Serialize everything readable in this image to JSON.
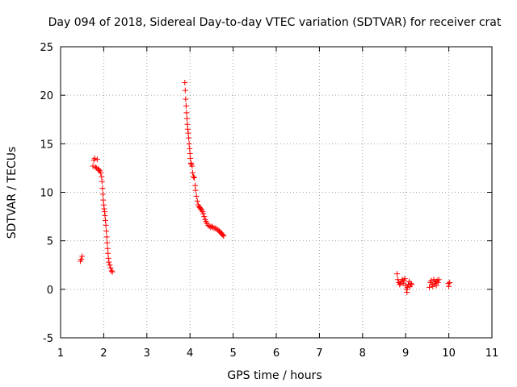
{
  "chart_data": {
    "type": "scatter",
    "title": "Day 094 of 2018, Sidereal Day-to-day VTEC variation (SDTVAR) for receiver crat",
    "xlabel": "GPS time / hours",
    "ylabel": "SDTVAR / TECUs",
    "xlim": [
      1,
      11
    ],
    "ylim": [
      -5,
      25
    ],
    "x_ticks": [
      1,
      2,
      3,
      4,
      5,
      6,
      7,
      8,
      9,
      10,
      11
    ],
    "y_ticks": [
      -5,
      0,
      5,
      10,
      15,
      20,
      25
    ],
    "x_tick_labels": [
      "1",
      "2",
      "3",
      "4",
      "5",
      "6",
      "7",
      "8",
      "9",
      "10",
      "11"
    ],
    "y_tick_labels": [
      "-5",
      "0",
      "5",
      "10",
      "15",
      "20",
      "25"
    ],
    "grid": true,
    "marker": "+",
    "color": "#ff0000",
    "series": [
      {
        "name": "SDTVAR",
        "points": [
          [
            1.46,
            2.9
          ],
          [
            1.48,
            3.1
          ],
          [
            1.5,
            3.4
          ],
          [
            1.75,
            12.7
          ],
          [
            1.77,
            13.3
          ],
          [
            1.79,
            13.5
          ],
          [
            1.81,
            12.6
          ],
          [
            1.83,
            12.5
          ],
          [
            1.85,
            13.4
          ],
          [
            1.87,
            12.4
          ],
          [
            1.89,
            12.3
          ],
          [
            1.91,
            12.2
          ],
          [
            1.93,
            12.0
          ],
          [
            1.95,
            11.6
          ],
          [
            1.96,
            11.1
          ],
          [
            1.97,
            10.4
          ],
          [
            1.98,
            9.8
          ],
          [
            1.99,
            9.2
          ],
          [
            2.0,
            8.7
          ],
          [
            2.01,
            8.3
          ],
          [
            2.02,
            8.0
          ],
          [
            2.03,
            7.6
          ],
          [
            2.04,
            7.1
          ],
          [
            2.05,
            6.6
          ],
          [
            2.06,
            6.0
          ],
          [
            2.07,
            5.4
          ],
          [
            2.08,
            4.8
          ],
          [
            2.09,
            4.2
          ],
          [
            2.1,
            3.7
          ],
          [
            2.11,
            3.2
          ],
          [
            2.12,
            2.8
          ],
          [
            2.14,
            2.5
          ],
          [
            2.16,
            2.2
          ],
          [
            2.18,
            1.9
          ],
          [
            2.2,
            1.8
          ],
          [
            3.88,
            21.3
          ],
          [
            3.89,
            20.5
          ],
          [
            3.9,
            19.6
          ],
          [
            3.91,
            18.9
          ],
          [
            3.92,
            18.2
          ],
          [
            3.93,
            17.6
          ],
          [
            3.94,
            17.0
          ],
          [
            3.95,
            16.5
          ],
          [
            3.96,
            16.1
          ],
          [
            3.97,
            15.6
          ],
          [
            3.98,
            15.0
          ],
          [
            3.99,
            14.5
          ],
          [
            4.0,
            14.0
          ],
          [
            4.01,
            13.5
          ],
          [
            4.02,
            13.0
          ],
          [
            4.03,
            12.9
          ],
          [
            4.05,
            12.7
          ],
          [
            4.06,
            12.0
          ],
          [
            4.08,
            11.6
          ],
          [
            4.1,
            11.5
          ],
          [
            4.12,
            10.7
          ],
          [
            4.13,
            10.2
          ],
          [
            4.15,
            9.6
          ],
          [
            4.17,
            9.1
          ],
          [
            4.19,
            8.7
          ],
          [
            4.21,
            8.5
          ],
          [
            4.23,
            8.4
          ],
          [
            4.25,
            8.3
          ],
          [
            4.27,
            8.2
          ],
          [
            4.29,
            8.0
          ],
          [
            4.31,
            7.8
          ],
          [
            4.33,
            7.5
          ],
          [
            4.35,
            7.2
          ],
          [
            4.37,
            7.0
          ],
          [
            4.39,
            6.8
          ],
          [
            4.42,
            6.6
          ],
          [
            4.45,
            6.5
          ],
          [
            4.48,
            6.4
          ],
          [
            4.5,
            6.5
          ],
          [
            4.53,
            6.4
          ],
          [
            4.56,
            6.3
          ],
          [
            4.59,
            6.3
          ],
          [
            4.62,
            6.2
          ],
          [
            4.65,
            6.1
          ],
          [
            4.68,
            6.0
          ],
          [
            4.7,
            5.9
          ],
          [
            4.72,
            5.8
          ],
          [
            4.74,
            5.7
          ],
          [
            4.76,
            5.6
          ],
          [
            4.78,
            5.5
          ],
          [
            8.8,
            1.6
          ],
          [
            8.82,
            1.0
          ],
          [
            8.84,
            0.7
          ],
          [
            8.86,
            0.5
          ],
          [
            8.88,
            0.6
          ],
          [
            8.9,
            0.8
          ],
          [
            8.92,
            1.0
          ],
          [
            8.94,
            0.6
          ],
          [
            8.96,
            0.9
          ],
          [
            8.98,
            1.1
          ],
          [
            9.0,
            0.4
          ],
          [
            9.02,
            0.0
          ],
          [
            9.03,
            -0.3
          ],
          [
            9.04,
            0.2
          ],
          [
            9.06,
            0.5
          ],
          [
            9.08,
            0.8
          ],
          [
            9.1,
            0.3
          ],
          [
            9.12,
            0.6
          ],
          [
            9.14,
            0.5
          ],
          [
            9.55,
            0.2
          ],
          [
            9.57,
            0.7
          ],
          [
            9.59,
            0.9
          ],
          [
            9.61,
            0.5
          ],
          [
            9.63,
            0.3
          ],
          [
            9.65,
            1.0
          ],
          [
            9.67,
            0.6
          ],
          [
            9.69,
            0.8
          ],
          [
            9.71,
            0.4
          ],
          [
            9.73,
            0.9
          ],
          [
            9.75,
            0.7
          ],
          [
            9.77,
            1.0
          ],
          [
            9.99,
            0.6
          ],
          [
            10.0,
            0.3
          ],
          [
            10.02,
            0.7
          ]
        ]
      }
    ]
  }
}
